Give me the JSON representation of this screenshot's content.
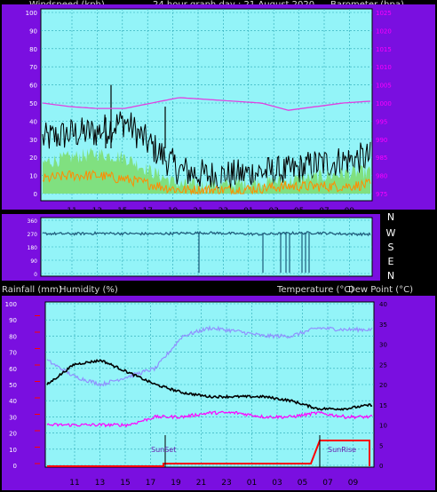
{
  "header": {
    "windspeed_label": "Windspeed (kph)",
    "graph_title": "24 hour graph day : 21 August 2020",
    "barometer_label": "Barometer (hpa)"
  },
  "direction_labels": [
    "N",
    "W",
    "S",
    "E",
    "N"
  ],
  "bottom_header": {
    "rainfall_label": "Rainfall (mm)",
    "humidity_label": "Humidity (%)",
    "temp_label": "Temperature (°C)",
    "dewpoint_label": "Dew Point (°C)"
  },
  "annotations": {
    "sunset": "SunSet",
    "sunrise": "SunRise"
  },
  "colors": {
    "outer_bg": "#7a0fe0",
    "plot_bg": "#93f4f8",
    "grid": "#2aa7b5",
    "axis_left": "#ffffff",
    "axis_right_pressure": "#ff00ff",
    "axis_right_temp": "#000000",
    "rain_axis": "#ff0000"
  },
  "chart_data": [
    {
      "type": "line",
      "title": "24 hour graph day : 21 August 2020",
      "x_tick_labels": [
        "11",
        "13",
        "15",
        "17",
        "19",
        "21",
        "23",
        "01",
        "03",
        "05",
        "07",
        "09"
      ],
      "y_left": {
        "label": "Windspeed (kph)",
        "range": [
          0,
          100
        ],
        "ticks": [
          0,
          10,
          20,
          30,
          40,
          50,
          60,
          70,
          80,
          90,
          100
        ]
      },
      "y_right": {
        "label": "Barometer (hpa)",
        "range": [
          975,
          1025
        ],
        "ticks": [
          975,
          980,
          985,
          990,
          995,
          1000,
          1005,
          1010,
          1015,
          1020,
          1025
        ]
      },
      "series": [
        {
          "name": "Gust",
          "color": "#000000",
          "approx_values": [
            30,
            33,
            34,
            40,
            26,
            13,
            10,
            10,
            12,
            12,
            16,
            18,
            20
          ]
        },
        {
          "name": "Windspeed",
          "color": "#80e080",
          "approx_values": [
            17,
            20,
            22,
            20,
            12,
            5,
            4,
            5,
            6,
            7,
            9,
            11,
            12
          ]
        },
        {
          "name": "Wind Average",
          "color": "#ff8c00",
          "approx_values": [
            8,
            10,
            10,
            8,
            5,
            2,
            2,
            2,
            3,
            4,
            4,
            4,
            5
          ]
        },
        {
          "name": "Barometer",
          "color": "#e040e0",
          "approx_values": [
            1000,
            999,
            998.5,
            998.5,
            1000,
            1001.5,
            1001,
            1000.5,
            1000,
            998,
            999,
            1000,
            1000.5
          ]
        }
      ],
      "grid": true
    },
    {
      "type": "line",
      "title": "",
      "y_labels": [
        "N",
        "W",
        "S",
        "E",
        "N"
      ],
      "y_left_ticks": [
        360,
        270,
        180,
        90,
        0
      ],
      "series": [
        {
          "name": "Wind Direction",
          "color": "#1e5a7a",
          "approx_values": [
            270,
            268,
            272,
            270,
            268,
            272,
            275,
            270,
            265,
            272,
            275,
            268,
            265
          ]
        }
      ],
      "grid": true
    },
    {
      "type": "line",
      "x_tick_labels": [
        "11",
        "13",
        "15",
        "17",
        "19",
        "21",
        "23",
        "01",
        "03",
        "05",
        "07",
        "09"
      ],
      "y_left": {
        "label": "Humidity (%)",
        "range": [
          0,
          100
        ],
        "ticks": [
          0,
          10,
          20,
          30,
          40,
          50,
          60,
          70,
          80,
          90,
          100
        ]
      },
      "y_right": {
        "label": "Temperature (°C)",
        "range": [
          0,
          40
        ],
        "ticks": [
          0,
          5,
          10,
          15,
          20,
          25,
          30,
          35,
          40
        ]
      },
      "series": [
        {
          "name": "Humidity",
          "color": "#9090ff",
          "approx_values": [
            65,
            55,
            50,
            55,
            60,
            80,
            85,
            83,
            80,
            80,
            85,
            84,
            84
          ]
        },
        {
          "name": "Temperature",
          "color": "#000000",
          "approx_values": [
            20,
            25,
            26,
            23,
            20,
            18,
            17,
            17,
            17,
            16,
            14,
            14,
            15
          ]
        },
        {
          "name": "Dew Point",
          "color": "#ff00ff",
          "approx_values": [
            10,
            10,
            10,
            10,
            12,
            12,
            13,
            13,
            12,
            12,
            13,
            12,
            12
          ]
        },
        {
          "name": "Rainfall",
          "color": "#ff0000",
          "approx_values": [
            0,
            0,
            0,
            0,
            0.1,
            0.1,
            0.1,
            0.1,
            0.1,
            0.1,
            0.4,
            0.5,
            0.5
          ]
        }
      ],
      "annotations": [
        "SunSet",
        "SunRise"
      ],
      "grid": true
    }
  ]
}
